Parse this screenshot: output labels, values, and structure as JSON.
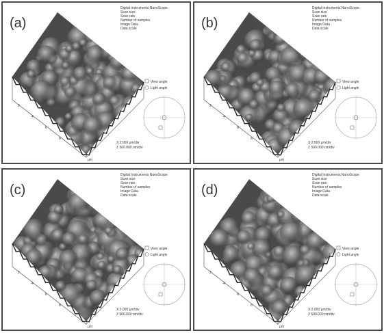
{
  "panels": [
    {
      "label": "(a)",
      "info": [
        "Digital Instruments NanoScope",
        "Scan size",
        "Scan rate",
        "Number of samples",
        "Image Data",
        "Data scale"
      ],
      "view": "View angle",
      "light": "Light angle",
      "scale": [
        "X 2.000 µm/div",
        "Z 500.000 nm/div"
      ],
      "axis_ticks": [
        "2",
        "4",
        "6",
        "8"
      ],
      "unit": "µm"
    },
    {
      "label": "(b)",
      "info": [
        "Digital Instruments NanoScope",
        "Scan size",
        "Scan rate",
        "Number of samples",
        "Image Data",
        "Data scale"
      ],
      "view": "View angle",
      "light": "Light angle",
      "scale": [
        "X 2.000 µm/div",
        "Z 500.000 nm/div"
      ],
      "axis_ticks": [
        "2",
        "4",
        "6",
        "8"
      ],
      "unit": "µm"
    },
    {
      "label": "(c)",
      "info": [
        "Digital Instruments NanoScope",
        "Scan size",
        "Scan rate",
        "Number of samples",
        "Image Data",
        "Data scale"
      ],
      "view": "View angle",
      "light": "Light angle",
      "scale": [
        "X 2.000 µm/div",
        "Z 500.000 nm/div"
      ],
      "axis_ticks": [
        "2",
        "4",
        "6",
        "8"
      ],
      "unit": "µm"
    },
    {
      "label": "(d)",
      "info": [
        "Digital Instruments NanoScope",
        "Scan size",
        "Scan rate",
        "Number of samples",
        "Image Data",
        "Data scale"
      ],
      "view": "View angle",
      "light": "Light angle",
      "scale": [
        "X 2.000 µm/div",
        "Z 500.000 nm/div"
      ],
      "axis_ticks": [
        "2",
        "4",
        "6",
        "8"
      ],
      "unit": "µm"
    }
  ]
}
